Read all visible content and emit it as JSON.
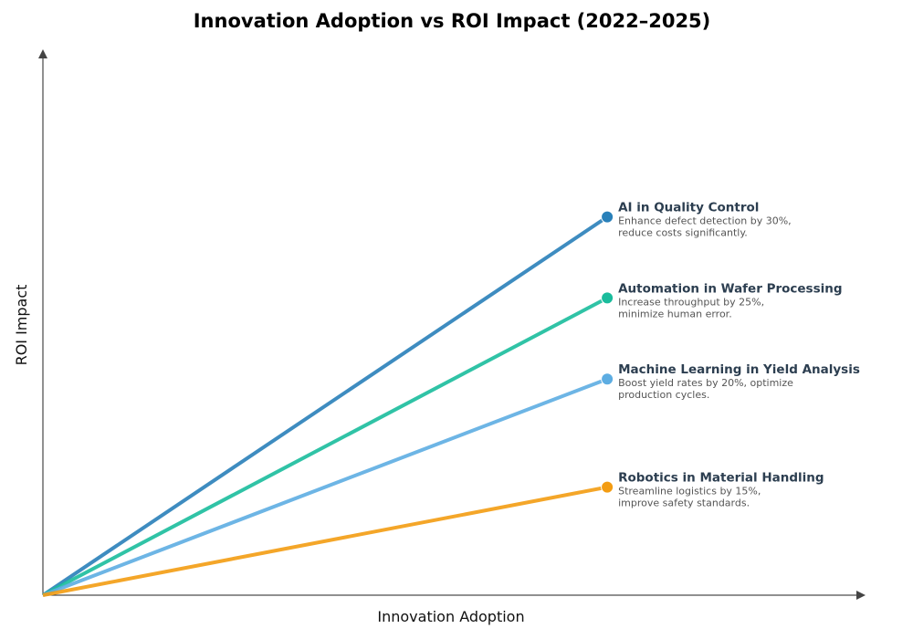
{
  "chart_data": {
    "type": "line",
    "title": "Innovation Adoption vs ROI Impact (2022–2025)",
    "xlabel": "Innovation Adoption",
    "ylabel": "ROI Impact",
    "xlim": [
      0,
      1
    ],
    "ylim": [
      0,
      1
    ],
    "grid": false,
    "series": [
      {
        "name": "AI in Quality Control",
        "description": [
          "Enhance defect detection by 30%,",
          "reduce costs significantly."
        ],
        "x": [
          0,
          0.7
        ],
        "y": [
          0,
          0.7
        ],
        "color": "#2980b9"
      },
      {
        "name": "Automation in Wafer Processing",
        "description": [
          "Increase throughput by 25%,",
          "minimize human error."
        ],
        "x": [
          0,
          0.7
        ],
        "y": [
          0,
          0.55
        ],
        "color": "#1abc9c"
      },
      {
        "name": "Machine Learning in Yield Analysis",
        "description": [
          "Boost yield rates by 20%, optimize",
          "production cycles."
        ],
        "x": [
          0,
          0.7
        ],
        "y": [
          0,
          0.4
        ],
        "color": "#5dade2"
      },
      {
        "name": "Robotics in Material Handling",
        "description": [
          "Streamline logistics by 15%,",
          "improve safety standards."
        ],
        "x": [
          0,
          0.7
        ],
        "y": [
          0,
          0.2
        ],
        "color": "#f39c12"
      }
    ]
  }
}
